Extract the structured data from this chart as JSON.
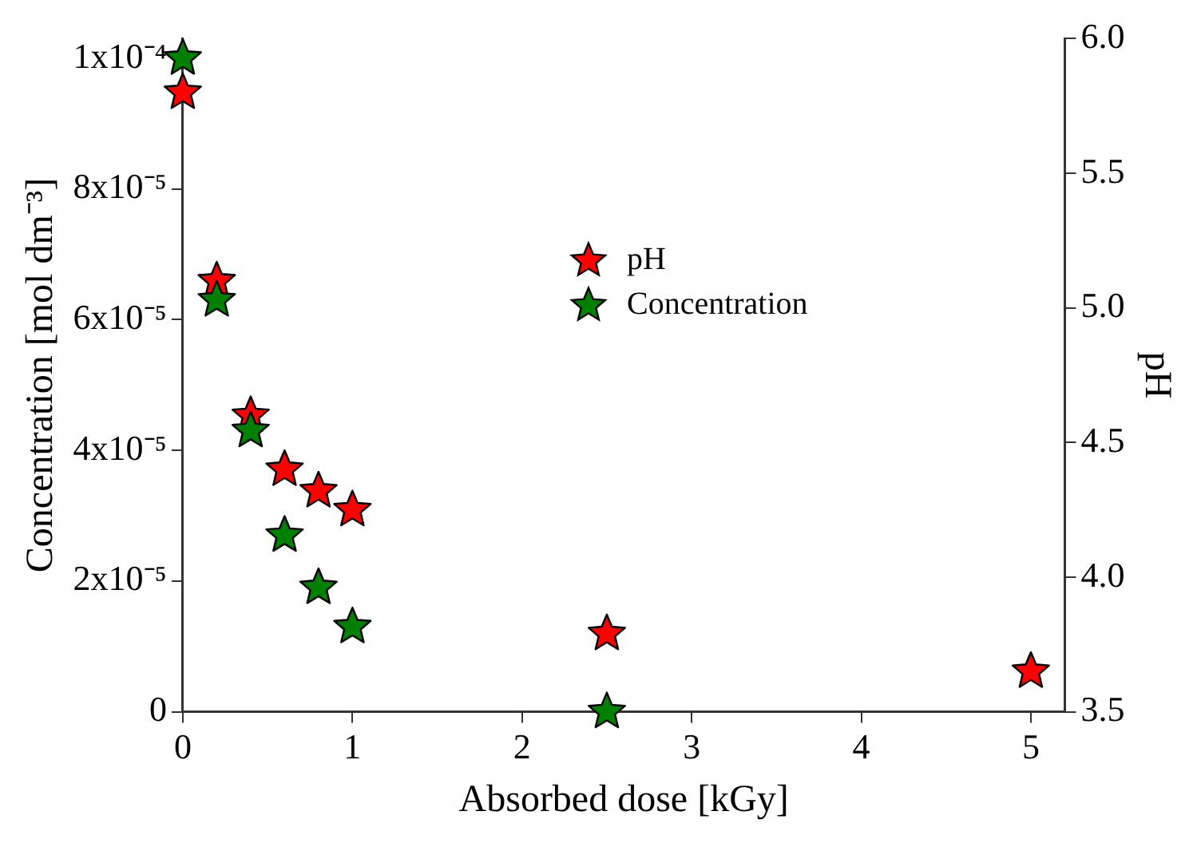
{
  "chart_data": {
    "type": "scatter",
    "xlabel": "Absorbed dose [kGy]",
    "ylabel": "Concentration [mol dm⁻³]",
    "y2label": "pH",
    "xlim": [
      0,
      5.2
    ],
    "xticks": [
      0,
      1,
      2,
      3,
      4,
      5
    ],
    "ylim": [
      0,
      0.000103
    ],
    "yticks": [
      {
        "value": 0,
        "label": "0"
      },
      {
        "value": 2e-05,
        "label": "2x10⁻⁵"
      },
      {
        "value": 4e-05,
        "label": "4x10⁻⁵"
      },
      {
        "value": 6e-05,
        "label": "6x10⁻⁵"
      },
      {
        "value": 8e-05,
        "label": "8x10⁻⁵"
      },
      {
        "value": 0.0001,
        "label": "1x10⁻⁴"
      }
    ],
    "y2lim": [
      3.5,
      6.0
    ],
    "y2ticks": [
      {
        "value": 3.5,
        "label": "3.5"
      },
      {
        "value": 4,
        "label": "4.0"
      },
      {
        "value": 4.5,
        "label": "4.5"
      },
      {
        "value": 5,
        "label": "5.0"
      },
      {
        "value": 5.5,
        "label": "5.5"
      },
      {
        "value": 6,
        "label": "6.0"
      }
    ],
    "grid": false,
    "legend": "top right",
    "marker": "star",
    "series": [
      {
        "name": "pH",
        "color": "#ff0000",
        "axis": "y2",
        "x": [
          0,
          0.2,
          0.4,
          0.6,
          0.8,
          1,
          2.5,
          5
        ],
        "values": [
          5.8,
          5.1,
          4.6,
          4.4,
          4.32,
          4.25,
          3.79,
          3.65
        ]
      },
      {
        "name": "Concentration",
        "color": "#008000",
        "x": [
          0,
          0.2,
          0.4,
          0.6,
          0.8,
          1,
          2.5
        ],
        "values": [
          0.0001,
          6.3e-05,
          4.3e-05,
          2.7e-05,
          1.9e-05,
          1.3e-05,
          0
        ]
      }
    ]
  }
}
